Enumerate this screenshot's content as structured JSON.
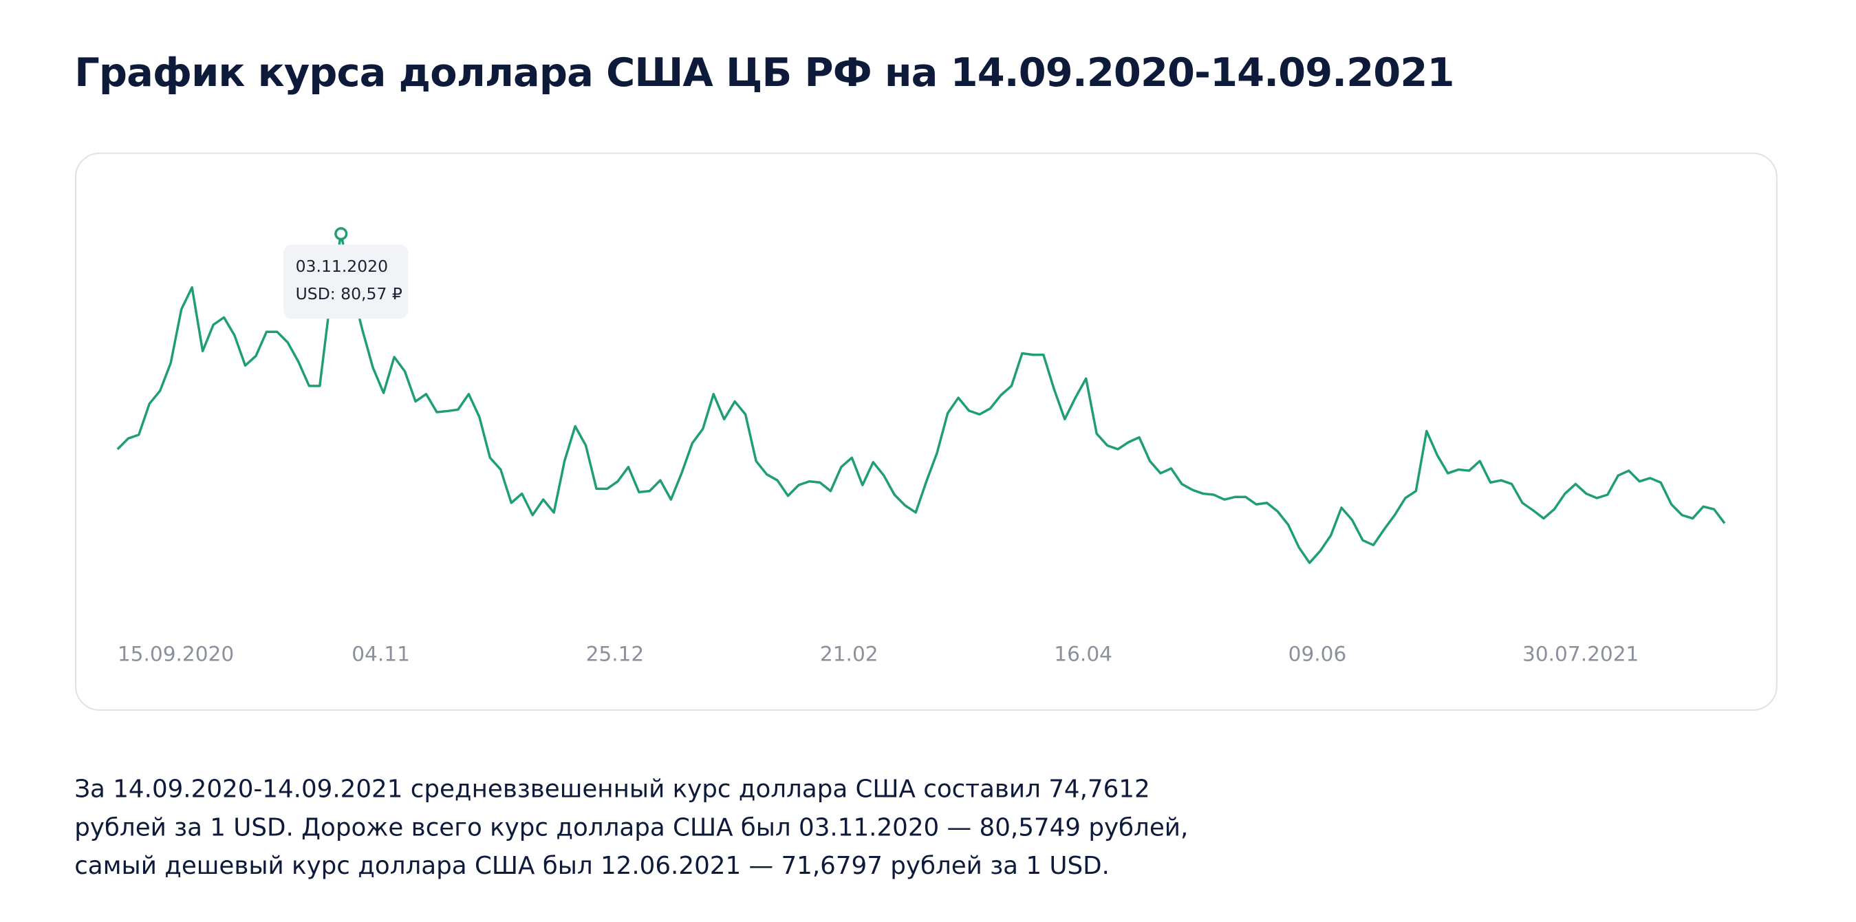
{
  "chart_data": {
    "type": "line",
    "title": "График курса доллара США ЦБ РФ на 14.09.2020-14.09.2021",
    "color": "#1f9e74",
    "values": [
      74.75,
      75.04,
      75.14,
      75.98,
      76.33,
      77.08,
      78.53,
      79.12,
      77.4,
      78.11,
      78.31,
      77.82,
      77.01,
      77.27,
      77.92,
      77.92,
      77.63,
      77.11,
      76.46,
      76.46,
      78.79,
      80.57,
      79.12,
      77.98,
      76.95,
      76.27,
      77.24,
      76.85,
      76.04,
      76.24,
      75.75,
      75.78,
      75.82,
      76.24,
      75.62,
      74.52,
      74.2,
      73.3,
      73.55,
      72.97,
      73.39,
      73.04,
      74.43,
      75.37,
      74.85,
      73.68,
      73.68,
      73.88,
      74.27,
      73.59,
      73.62,
      73.91,
      73.39,
      74.1,
      74.91,
      75.3,
      76.24,
      75.56,
      76.04,
      75.69,
      74.43,
      74.07,
      73.91,
      73.49,
      73.78,
      73.88,
      73.85,
      73.62,
      74.27,
      74.52,
      73.78,
      74.4,
      74.04,
      73.52,
      73.23,
      73.04,
      73.88,
      74.65,
      75.72,
      76.14,
      75.79,
      75.69,
      75.85,
      76.21,
      76.46,
      77.34,
      77.3,
      77.3,
      76.37,
      75.56,
      76.14,
      76.66,
      75.17,
      74.85,
      74.75,
      74.94,
      75.07,
      74.43,
      74.1,
      74.23,
      73.81,
      73.65,
      73.55,
      73.52,
      73.39,
      73.46,
      73.46,
      73.26,
      73.3,
      73.07,
      72.71,
      72.1,
      71.68,
      72.0,
      72.42,
      73.17,
      72.84,
      72.29,
      72.16,
      72.58,
      72.97,
      73.43,
      73.62,
      75.24,
      74.59,
      74.1,
      74.2,
      74.17,
      74.43,
      73.85,
      73.91,
      73.81,
      73.3,
      73.1,
      72.88,
      73.13,
      73.55,
      73.81,
      73.55,
      73.43,
      73.52,
      74.04,
      74.17,
      73.88,
      73.97,
      73.85,
      73.26,
      72.97,
      72.88,
      73.2,
      73.13,
      72.75
    ],
    "xlim": [
      0,
      151
    ],
    "ylim": [
      70,
      82
    ],
    "xticks": [
      {
        "value": 0,
        "label": "15.09.2020"
      },
      {
        "value": 22,
        "label": "04.11"
      },
      {
        "value": 44,
        "label": "25.12"
      },
      {
        "value": 66,
        "label": "21.02"
      },
      {
        "value": 88,
        "label": "16.04"
      },
      {
        "value": 110,
        "label": "09.06"
      },
      {
        "value": 132,
        "label": "30.07.2021"
      }
    ],
    "grid": false,
    "tooltip": {
      "date": "03.11.2020",
      "label": "USD: 80,57 ₽"
    }
  },
  "summary": [
    "За 14.09.2020-14.09.2021 средневзвешенный курс доллара США составил 74,7612",
    "рублей за 1 USD. Дороже всего курс доллара США был 03.11.2020 — 80,5749 рублей,",
    "самый дешевый курс доллара США был 12.06.2021 — 71,6797 рублей за 1 USD."
  ]
}
